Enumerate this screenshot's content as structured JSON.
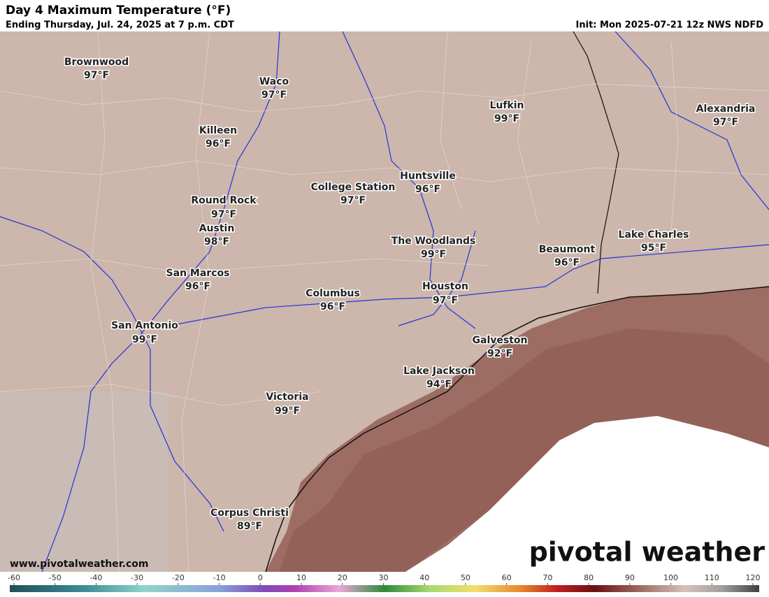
{
  "header": {
    "title": "Day 4 Maximum Temperature (°F)",
    "subtitle": "Ending Thursday, Jul. 24, 2025 at 7 p.m. CDT",
    "init": "Init: Mon 2025-07-21 12z NWS NDFD"
  },
  "cities": [
    {
      "name": "Brownwood",
      "temp": "97°F"
    },
    {
      "name": "Waco",
      "temp": "97°F"
    },
    {
      "name": "Killeen",
      "temp": "96°F"
    },
    {
      "name": "Lufkin",
      "temp": "99°F"
    },
    {
      "name": "Alexandria",
      "temp": "97°F"
    },
    {
      "name": "Huntsville",
      "temp": "96°F"
    },
    {
      "name": "College Station",
      "temp": "97°F"
    },
    {
      "name": "Round Rock",
      "temp": "97°F"
    },
    {
      "name": "Austin",
      "temp": "98°F"
    },
    {
      "name": "The Woodlands",
      "temp": "99°F"
    },
    {
      "name": "Beaumont",
      "temp": "96°F"
    },
    {
      "name": "Lake Charles",
      "temp": "95°F"
    },
    {
      "name": "San Marcos",
      "temp": "96°F"
    },
    {
      "name": "Columbus",
      "temp": "96°F"
    },
    {
      "name": "Houston",
      "temp": "97°F"
    },
    {
      "name": "San Antonio",
      "temp": "99°F"
    },
    {
      "name": "Galveston",
      "temp": "92°F"
    },
    {
      "name": "Lake Jackson",
      "temp": "94°F"
    },
    {
      "name": "Victoria",
      "temp": "99°F"
    },
    {
      "name": "Corpus Christi",
      "temp": "89°F"
    }
  ],
  "footer": {
    "website": "www.pivotalweather.com",
    "logo": "pivotal weather"
  },
  "colorbar": {
    "ticks": [
      -60,
      -50,
      -40,
      -30,
      -20,
      -10,
      0,
      10,
      20,
      30,
      40,
      50,
      60,
      70,
      80,
      90,
      100,
      110,
      120
    ]
  }
}
